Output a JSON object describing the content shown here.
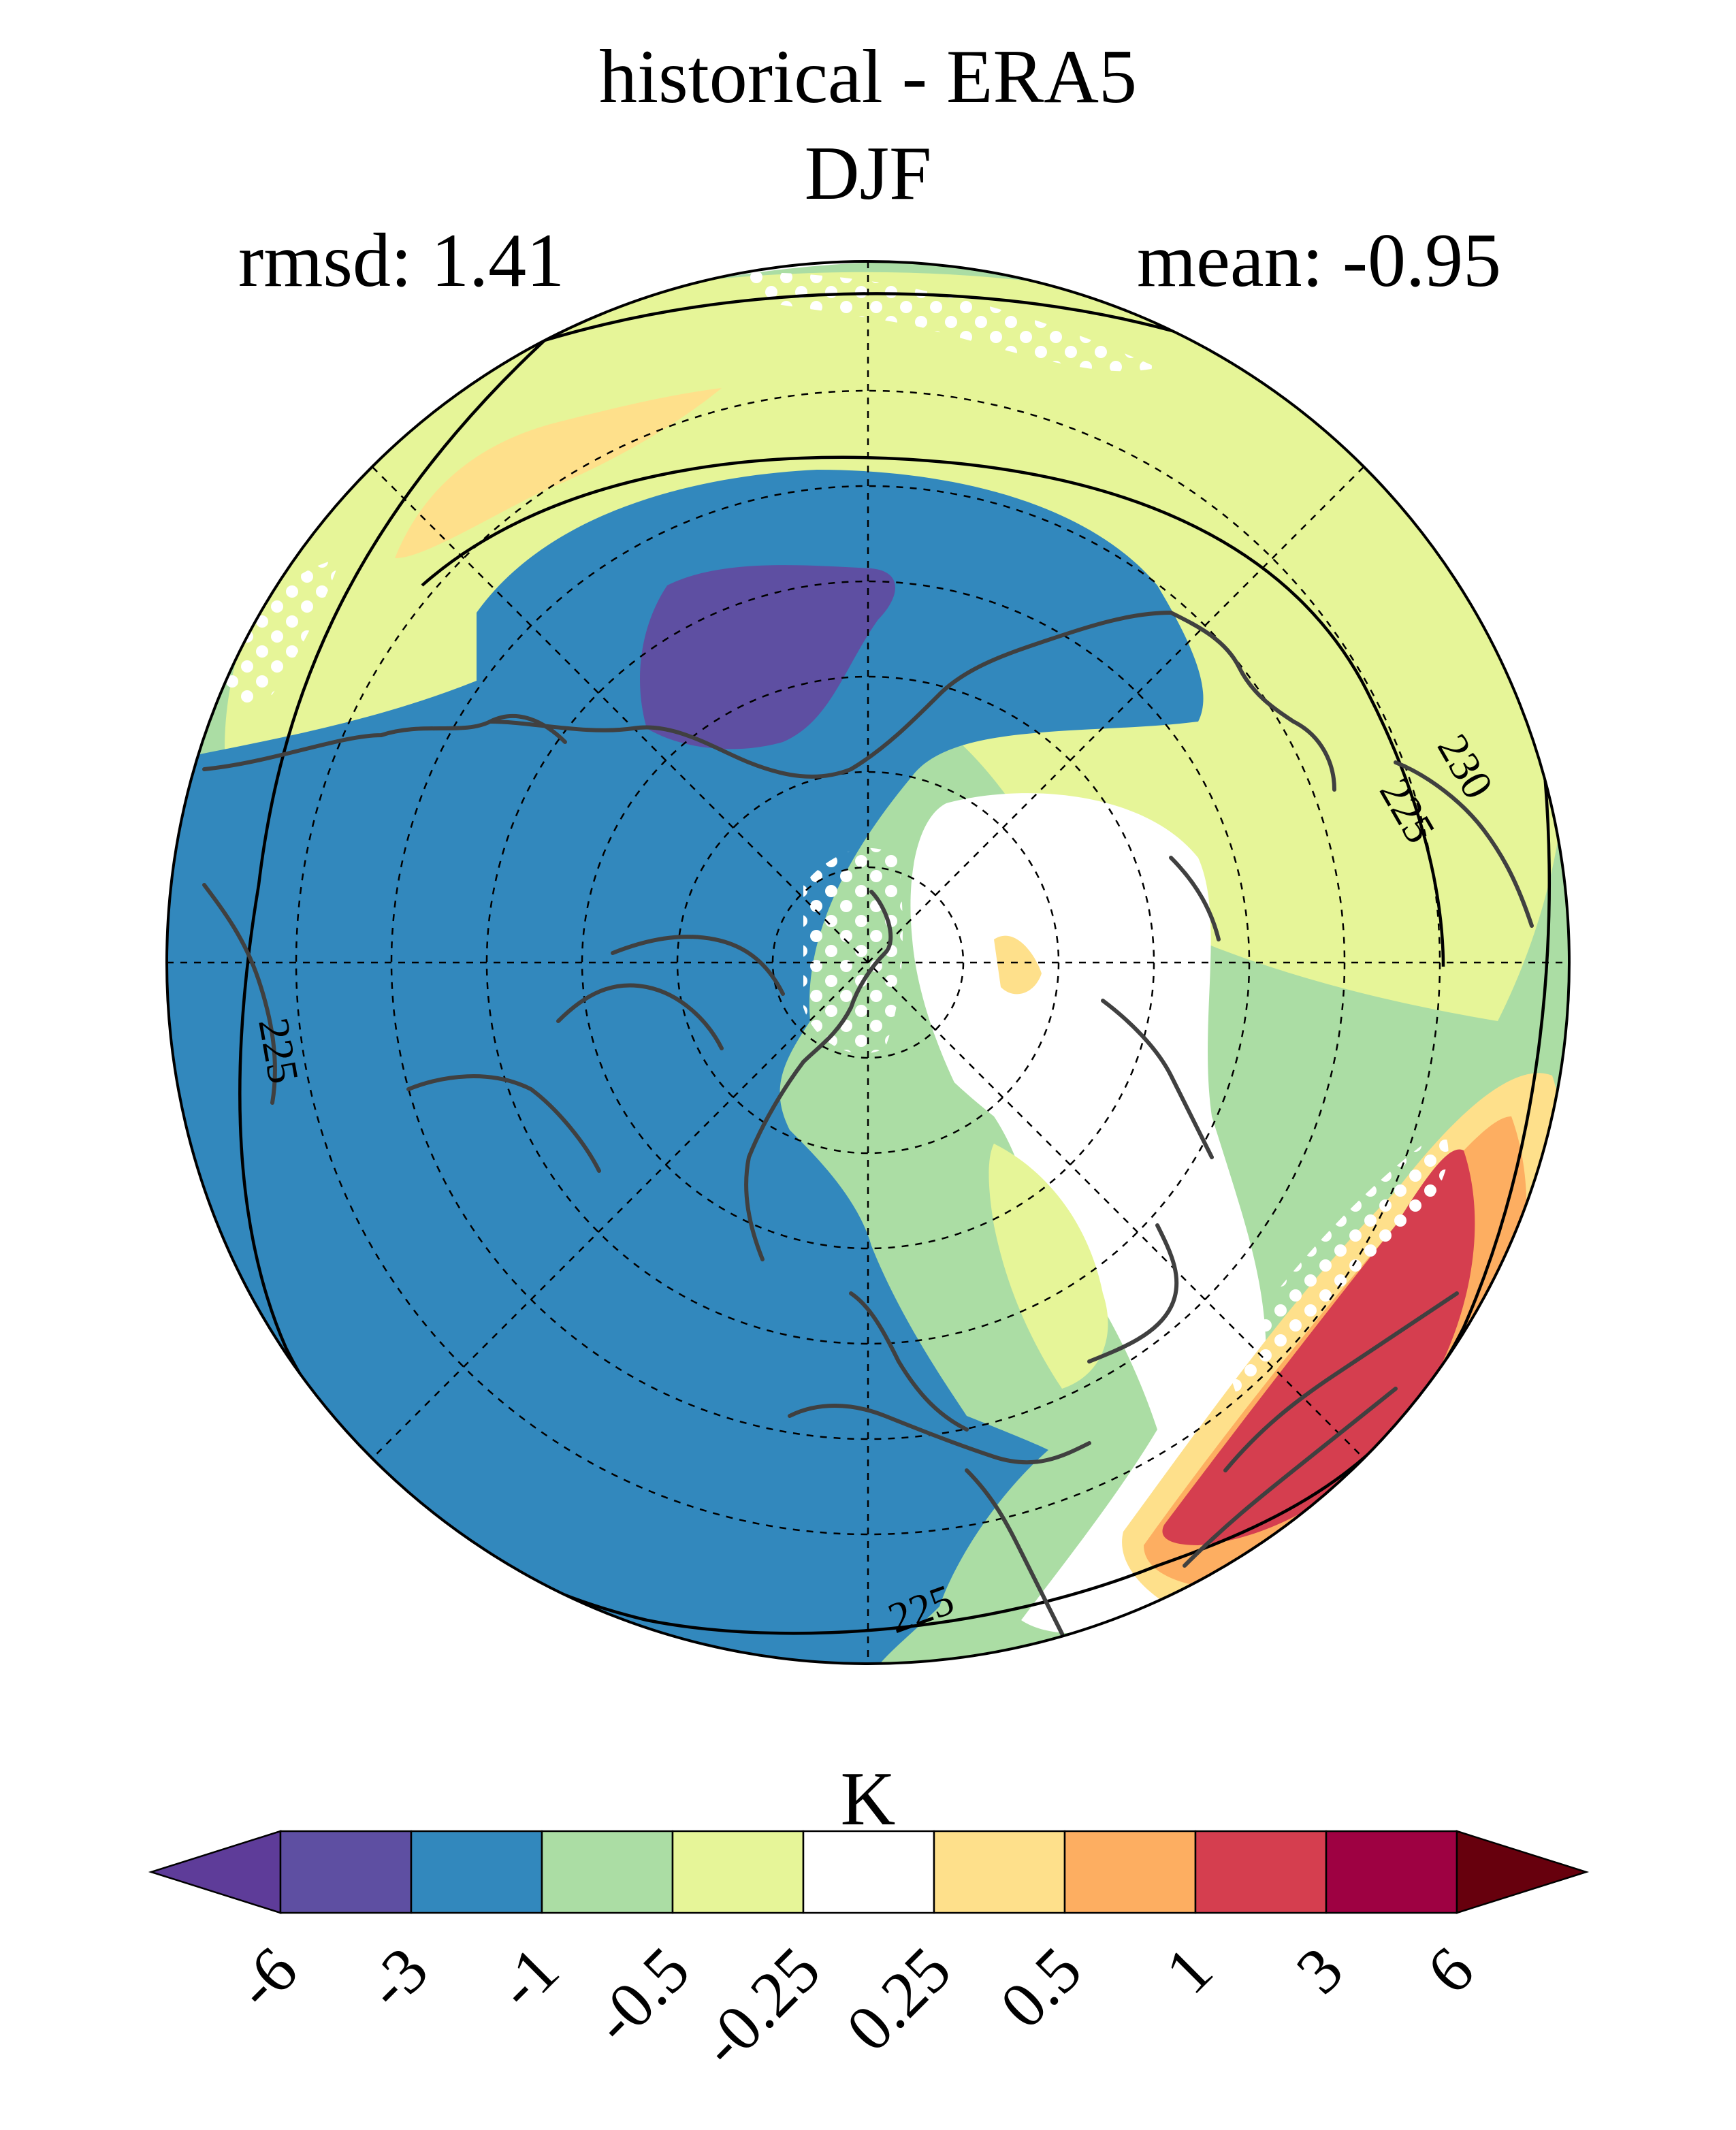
{
  "title": {
    "line1": "historical - ERA5",
    "line2": "DJF"
  },
  "stats": {
    "rmsd": "rmsd: 1.41",
    "mean": "mean: -0.95"
  },
  "chart_data": {
    "type": "polar-stereographic-map",
    "projection": "north-polar-stereographic",
    "hemisphere": "northern",
    "season": "DJF",
    "quantity": "temperature difference (historical - ERA5)",
    "units": "K",
    "rmsd": 1.41,
    "mean": -0.95,
    "contour_lines": [
      {
        "value": 225,
        "label": "225"
      },
      {
        "value": 230,
        "label": "230"
      }
    ],
    "stippling": "white dots mark non-significant regions",
    "colorbar": {
      "label": "K",
      "extend": "both",
      "levels": [
        "-6",
        "-3",
        "-1",
        "-0.5",
        "-0.25",
        "0.25",
        "0.5",
        "1",
        "3",
        "6"
      ],
      "colors": [
        "#5e3c99",
        "#5e4fa2",
        "#3288bd",
        "#abdda4",
        "#e6f598",
        "#ffffff",
        "#fee08b",
        "#fdae61",
        "#d53e4f",
        "#9e0142",
        "#67000d"
      ]
    }
  }
}
